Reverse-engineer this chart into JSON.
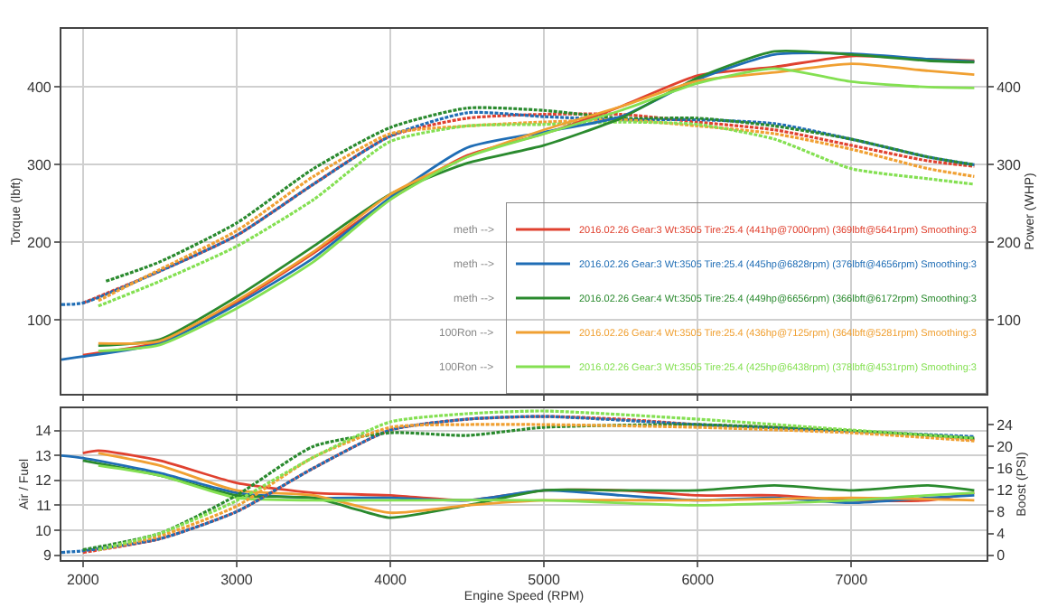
{
  "chart_data": [
    {
      "type": "line",
      "ylabel": "Torque (lbft)",
      "y2label": "Power (WHP)",
      "xlim": [
        1860,
        7880
      ],
      "xticks": [
        2000,
        3000,
        4000,
        5000,
        6000,
        7000
      ],
      "ylim": [
        5,
        475
      ],
      "yticks": [
        100,
        200,
        300,
        400
      ],
      "y2lim": [
        5,
        475
      ],
      "y2ticks": [
        100,
        200,
        300,
        400
      ],
      "grid": true,
      "legend": "bottom right",
      "tick_labels": "y",
      "annotations": [
        "meth -->",
        "meth -->",
        "meth -->",
        "100Ron -->",
        "100Ron -->"
      ],
      "series": [
        {
          "name": "2016.02.26 Gear:3 Wt:3505 Tire:25.4 (441hp@7000rpm) (369lbft@5641rpm) Smoothing:3",
          "color": "#e0412f",
          "axis": "y2",
          "line_style": "solid",
          "x": [
            2000,
            2500,
            3000,
            3500,
            4000,
            4500,
            5000,
            5500,
            6000,
            6500,
            7000,
            7500,
            7800
          ],
          "values": [
            55,
            72,
            123,
            186,
            256,
            312,
            340,
            375,
            415,
            426,
            440,
            436,
            434
          ]
        },
        {
          "name": "2016.02.26 Gear:3 Wt:3505 Tire:25.4 (445hp@6828rpm) (376lbft@4656rpm) Smoothing:3",
          "color": "#1f6db5",
          "axis": "y2",
          "line_style": "solid",
          "x": [
            1860,
            2000,
            2500,
            3000,
            3500,
            4000,
            4500,
            5000,
            5500,
            6000,
            6500,
            7000,
            7500,
            7800
          ],
          "values": [
            49,
            53,
            70,
            120,
            180,
            258,
            322,
            342,
            362,
            410,
            442,
            443,
            436,
            433
          ]
        },
        {
          "name": "2016.02.26 Gear:4 Wt:3505 Tire:25.4 (449hp@6656rpm) (366lbft@6172rpm) Smoothing:3",
          "color": "#2a8a2e",
          "axis": "y2",
          "line_style": "solid",
          "x": [
            2100,
            2500,
            3000,
            3500,
            4000,
            4500,
            5000,
            5500,
            6000,
            6500,
            7000,
            7500,
            7800
          ],
          "values": [
            67,
            75,
            130,
            195,
            262,
            302,
            325,
            360,
            412,
            446,
            442,
            434,
            432
          ]
        },
        {
          "name": "2016.02.26 Gear:4 Wt:3505 Tire:25.4 (436hp@7125rpm) (364lbft@5281rpm) Smoothing:3",
          "color": "#f0a032",
          "axis": "y2",
          "line_style": "solid",
          "x": [
            2100,
            2500,
            3000,
            3500,
            4000,
            4500,
            5000,
            5500,
            6000,
            6500,
            7000,
            7500,
            7800
          ],
          "values": [
            70,
            73,
            125,
            188,
            262,
            310,
            345,
            375,
            408,
            419,
            430,
            421,
            416
          ]
        },
        {
          "name": "2016.02.26 Gear:3 Wt:3505 Tire:25.4 (425hp@6438rpm) (378lbft@4531rpm) Smoothing:3",
          "color": "#84e052",
          "axis": "y2",
          "line_style": "solid",
          "x": [
            2100,
            2500,
            3000,
            3500,
            4000,
            4500,
            5000,
            5500,
            6000,
            6500,
            7000,
            7500,
            7800
          ],
          "values": [
            60,
            68,
            115,
            175,
            255,
            310,
            340,
            370,
            405,
            424,
            407,
            400,
            399
          ]
        },
        {
          "color": "#e0412f",
          "axis": "y",
          "line_style": "dotted",
          "x": [
            2000,
            2500,
            3000,
            3500,
            4000,
            4500,
            5000,
            5500,
            6000,
            6500,
            7000,
            7500,
            7800
          ],
          "values": [
            122,
            163,
            209,
            275,
            337,
            360,
            365,
            365,
            355,
            345,
            325,
            305,
            298
          ]
        },
        {
          "color": "#1f6db5",
          "axis": "y",
          "line_style": "dotted",
          "x": [
            1860,
            2000,
            2500,
            3000,
            3500,
            4000,
            4500,
            5000,
            5500,
            6000,
            6500,
            7000,
            7500,
            7800
          ],
          "values": [
            120,
            122,
            163,
            209,
            275,
            337,
            367,
            362,
            358,
            358,
            353,
            333,
            310,
            300
          ]
        },
        {
          "color": "#2a8a2e",
          "axis": "y",
          "line_style": "dotted",
          "x": [
            2150,
            2500,
            3000,
            3500,
            4000,
            4500,
            5000,
            5500,
            6000,
            6500,
            7000,
            7500,
            7800
          ],
          "values": [
            150,
            175,
            225,
            295,
            348,
            373,
            370,
            360,
            360,
            350,
            333,
            310,
            300
          ]
        },
        {
          "color": "#f0a032",
          "axis": "y",
          "line_style": "dotted",
          "x": [
            2100,
            2500,
            3000,
            3500,
            4000,
            4500,
            5000,
            5500,
            6000,
            6500,
            7000,
            7500,
            7800
          ],
          "values": [
            125,
            165,
            215,
            285,
            340,
            350,
            355,
            358,
            350,
            340,
            320,
            295,
            285
          ]
        },
        {
          "color": "#84e052",
          "axis": "y",
          "line_style": "dotted",
          "x": [
            2100,
            2500,
            3000,
            3500,
            4000,
            4500,
            5000,
            5500,
            6000,
            6500,
            7000,
            7500,
            7800
          ],
          "values": [
            118,
            150,
            195,
            255,
            330,
            350,
            352,
            355,
            352,
            333,
            295,
            282,
            275
          ]
        }
      ]
    },
    {
      "type": "line",
      "xlabel": "Engine Speed (RPM)",
      "ylabel": "Air / Fuel",
      "y2label": "Boost (PSI)",
      "xlim": [
        1860,
        7880
      ],
      "xticks": [
        2000,
        3000,
        4000,
        5000,
        6000,
        7000
      ],
      "ylim": [
        8.8,
        14.9
      ],
      "yticks": [
        9,
        10,
        11,
        12,
        13,
        14
      ],
      "y2lim": [
        -0.9,
        27
      ],
      "y2ticks": [
        0,
        4,
        8,
        12,
        16,
        20,
        24
      ],
      "grid": true,
      "series": [
        {
          "color": "#e0412f",
          "axis": "y",
          "line_style": "solid",
          "x": [
            2000,
            2100,
            2500,
            3000,
            3500,
            4000,
            4500,
            5000,
            5500,
            6000,
            6500,
            7000,
            7500,
            7800
          ],
          "values": [
            13.1,
            13.2,
            12.8,
            11.9,
            11.5,
            11.4,
            11.2,
            11.6,
            11.6,
            11.4,
            11.4,
            11.2,
            11.2,
            11.5
          ]
        },
        {
          "color": "#1f6db5",
          "axis": "y",
          "line_style": "solid",
          "x": [
            1860,
            2000,
            2500,
            3000,
            3500,
            4000,
            4500,
            5000,
            5500,
            6000,
            6500,
            7000,
            7500,
            7800
          ],
          "values": [
            13,
            12.9,
            12.3,
            11.5,
            11.3,
            11.3,
            11.2,
            11.6,
            11.4,
            11.2,
            11.3,
            11.1,
            11.3,
            11.4
          ]
        },
        {
          "color": "#2a8a2e",
          "axis": "y",
          "line_style": "solid",
          "x": [
            2000,
            2500,
            3000,
            3500,
            3800,
            4000,
            4500,
            5000,
            5500,
            6000,
            6500,
            7000,
            7500,
            7800
          ],
          "values": [
            12.8,
            12.2,
            11.4,
            11.3,
            10.8,
            10.5,
            11,
            11.6,
            11.6,
            11.6,
            11.8,
            11.6,
            11.8,
            11.6
          ]
        },
        {
          "color": "#f0a032",
          "axis": "y",
          "line_style": "solid",
          "x": [
            2100,
            2500,
            3000,
            3500,
            4000,
            4500,
            5000,
            6000,
            7000,
            7800
          ],
          "values": [
            13.1,
            12.6,
            11.6,
            11.4,
            10.7,
            11,
            11.2,
            11.2,
            11.3,
            11.2
          ]
        },
        {
          "color": "#84e052",
          "axis": "y",
          "line_style": "solid",
          "x": [
            2100,
            2500,
            3000,
            3500,
            4000,
            5000,
            6000,
            7000,
            7500,
            7800
          ],
          "values": [
            12.6,
            12.2,
            11.3,
            11.2,
            11.2,
            11.2,
            11,
            11.2,
            11.4,
            11.5
          ]
        },
        {
          "color": "#e0412f",
          "axis": "y2",
          "line_style": "dotted",
          "x": [
            2000,
            2500,
            3000,
            3500,
            4000,
            4500,
            5000,
            5500,
            6000,
            6500,
            7000,
            7500,
            7800
          ],
          "values": [
            0.5,
            3,
            8,
            16,
            23,
            25,
            25.5,
            25,
            24,
            23.5,
            22.8,
            22,
            21.2
          ]
        },
        {
          "color": "#1f6db5",
          "axis": "y2",
          "line_style": "dotted",
          "x": [
            1860,
            2000,
            2500,
            3000,
            3500,
            4000,
            4500,
            5000,
            6000,
            7000,
            7800
          ],
          "values": [
            0.5,
            0.8,
            3,
            8,
            16,
            23,
            25,
            25.5,
            24,
            22.8,
            21.8
          ]
        },
        {
          "color": "#2a8a2e",
          "axis": "y2",
          "line_style": "dotted",
          "x": [
            2000,
            2500,
            3000,
            3500,
            4000,
            4500,
            5000,
            6000,
            7000,
            7800
          ],
          "values": [
            1,
            4,
            11,
            20,
            22.5,
            22,
            23.5,
            24,
            22.8,
            21.5
          ]
        },
        {
          "color": "#f0a032",
          "axis": "y2",
          "line_style": "dotted",
          "x": [
            2100,
            2500,
            3000,
            3500,
            4000,
            4500,
            5000,
            6000,
            7000,
            7800
          ],
          "values": [
            1,
            3.5,
            9,
            18,
            23.5,
            24,
            24,
            23.5,
            22.5,
            21
          ]
        },
        {
          "color": "#84e052",
          "axis": "y2",
          "line_style": "dotted",
          "x": [
            2100,
            2500,
            3000,
            3500,
            4000,
            4500,
            5000,
            6000,
            7000,
            7800
          ],
          "values": [
            1,
            4,
            10,
            18,
            24.5,
            26,
            26.5,
            25,
            23,
            21.5
          ]
        }
      ]
    }
  ]
}
